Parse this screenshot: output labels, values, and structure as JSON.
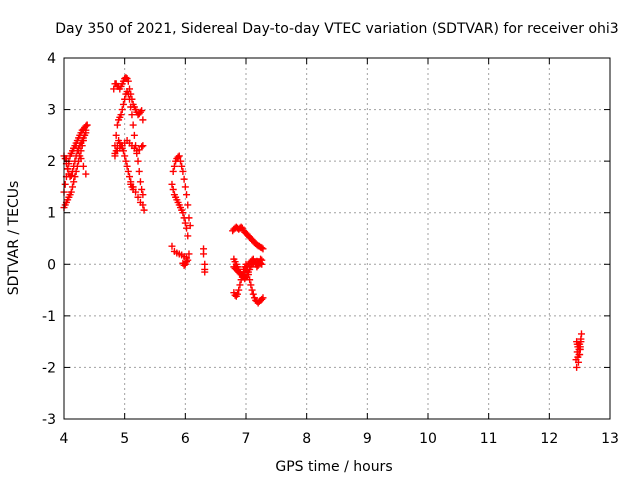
{
  "chart_data": {
    "type": "scatter",
    "title": "Day 350 of 2021, Sidereal Day-to-day VTEC variation (SDTVAR) for receiver ohi3",
    "xlabel": "GPS time / hours",
    "ylabel": "SDTVAR / TECUs",
    "xlim": [
      4,
      13
    ],
    "ylim": [
      -3,
      4
    ],
    "x_ticks": [
      4,
      5,
      6,
      7,
      8,
      9,
      10,
      11,
      12,
      13
    ],
    "x_tick_labels": [
      "4",
      "5",
      "6",
      "7",
      "8",
      "9",
      "10",
      "11",
      "12",
      "13"
    ],
    "y_ticks": [
      -3,
      -2,
      -1,
      0,
      1,
      2,
      3,
      4
    ],
    "y_tick_labels": [
      "-3",
      "-2",
      "-1",
      "0",
      "1",
      "2",
      "3",
      "4"
    ],
    "grid": true,
    "marker": "+",
    "color": "#ff0000",
    "series": [
      {
        "name": "SDTVAR",
        "x": [
          4.0,
          4.02,
          4.04,
          4.06,
          4.08,
          4.1,
          4.12,
          4.14,
          4.16,
          4.18,
          4.2,
          4.22,
          4.24,
          4.26,
          4.28,
          4.3,
          4.32,
          4.34,
          4.36,
          4.38,
          4.0,
          4.02,
          4.04,
          4.06,
          4.08,
          4.1,
          4.12,
          4.14,
          4.16,
          4.18,
          4.2,
          4.22,
          4.24,
          4.26,
          4.28,
          4.3,
          4.32,
          4.34,
          4.36,
          4.38,
          4.0,
          4.02,
          4.04,
          4.06,
          4.08,
          4.1,
          4.12,
          4.14,
          4.16,
          4.18,
          4.2,
          4.22,
          4.24,
          4.26,
          4.28,
          4.3,
          4.32,
          4.34,
          4.36,
          4.04,
          4.08,
          4.12,
          4.16,
          4.2,
          4.24,
          4.28,
          4.32,
          4.36,
          4.82,
          4.84,
          4.86,
          4.88,
          4.9,
          4.92,
          4.94,
          4.96,
          4.98,
          5.0,
          5.02,
          5.04,
          5.06,
          5.08,
          5.1,
          5.12,
          5.14,
          5.16,
          5.18,
          5.2,
          5.22,
          5.24,
          5.26,
          5.28,
          5.3,
          4.84,
          4.86,
          4.88,
          4.9,
          4.92,
          4.94,
          4.96,
          4.98,
          5.0,
          5.02,
          5.04,
          5.06,
          5.08,
          5.1,
          5.12,
          5.14,
          5.16,
          5.18,
          5.2,
          5.22,
          5.24,
          5.26,
          5.28,
          5.3,
          4.84,
          4.88,
          4.92,
          4.96,
          5.0,
          5.04,
          5.08,
          5.12,
          5.16,
          5.2,
          5.24,
          5.28,
          5.3,
          4.84,
          4.86,
          4.88,
          4.9,
          4.92,
          4.94,
          4.96,
          4.98,
          5.0,
          5.02,
          5.04,
          5.06,
          5.08,
          5.1,
          5.12,
          5.14,
          5.1,
          5.14,
          5.18,
          5.22,
          5.26,
          5.3,
          5.32,
          5.8,
          5.82,
          5.84,
          5.86,
          5.88,
          5.9,
          5.92,
          5.94,
          5.96,
          5.98,
          6.0,
          6.02,
          6.04,
          6.06,
          6.08,
          5.78,
          5.8,
          5.82,
          5.84,
          5.86,
          5.88,
          5.9,
          5.92,
          5.94,
          5.96,
          5.98,
          6.0,
          6.02,
          6.04,
          5.78,
          5.82,
          5.86,
          5.9,
          5.94,
          5.98,
          6.02,
          6.06,
          5.96,
          5.98,
          6.0,
          6.02,
          6.04,
          6.3,
          6.3,
          6.32,
          6.32,
          6.32,
          6.78,
          6.8,
          6.82,
          6.84,
          6.86,
          6.88,
          6.9,
          6.92,
          6.94,
          6.96,
          6.98,
          7.0,
          7.02,
          7.04,
          7.06,
          7.08,
          7.1,
          7.12,
          7.14,
          7.16,
          7.18,
          7.2,
          7.22,
          7.24,
          7.26,
          7.28,
          6.8,
          6.82,
          6.84,
          6.86,
          6.88,
          6.9,
          6.92,
          6.94,
          6.96,
          6.98,
          7.0,
          7.02,
          7.04,
          7.06,
          7.08,
          7.1,
          7.12,
          7.14,
          7.16,
          7.18,
          7.2,
          7.22,
          7.24,
          7.26,
          6.8,
          6.82,
          6.84,
          6.86,
          6.88,
          6.9,
          6.92,
          6.94,
          6.96,
          6.98,
          7.0,
          7.02,
          7.04,
          7.06,
          7.08,
          7.1,
          7.12,
          7.14,
          7.16,
          7.18,
          7.2,
          7.22,
          7.24,
          7.26,
          7.28,
          6.8,
          6.82,
          6.84,
          6.86,
          6.88,
          6.9,
          6.92,
          6.94,
          6.96,
          6.98,
          7.0,
          7.02,
          7.04,
          7.06,
          7.08,
          7.1,
          7.12,
          7.14,
          7.16,
          7.18,
          7.2,
          7.22,
          7.24,
          7.26,
          12.44,
          12.45,
          12.46,
          12.47,
          12.48,
          12.49,
          12.5,
          12.51,
          12.52,
          12.53,
          12.45,
          12.46,
          12.47,
          12.48,
          12.49,
          12.5,
          12.51,
          12.52
        ],
        "y": [
          1.1,
          1.15,
          1.2,
          1.25,
          1.3,
          1.35,
          1.4,
          1.5,
          1.6,
          1.7,
          1.8,
          1.9,
          2.0,
          2.1,
          2.2,
          2.3,
          2.4,
          2.5,
          2.6,
          2.7,
          1.4,
          1.55,
          1.7,
          1.85,
          2.0,
          2.1,
          2.15,
          2.2,
          2.25,
          2.3,
          2.35,
          2.4,
          2.45,
          2.5,
          2.55,
          2.6,
          2.62,
          2.65,
          2.68,
          2.7,
          2.1,
          2.05,
          1.95,
          1.85,
          1.75,
          1.7,
          1.72,
          1.8,
          1.9,
          2.0,
          2.1,
          2.2,
          2.25,
          2.3,
          2.35,
          2.4,
          2.45,
          2.5,
          2.55,
          2.05,
          1.95,
          2.15,
          2.25,
          2.3,
          2.2,
          2.05,
          1.9,
          1.75,
          3.4,
          3.5,
          3.5,
          3.45,
          3.45,
          3.4,
          3.45,
          3.5,
          3.55,
          3.6,
          3.62,
          3.6,
          3.55,
          3.4,
          3.3,
          3.2,
          3.1,
          3.05,
          3.0,
          2.95,
          2.9,
          2.92,
          2.95,
          2.98,
          2.8,
          2.3,
          2.5,
          2.7,
          2.8,
          2.85,
          2.9,
          3.0,
          3.1,
          3.2,
          3.3,
          3.35,
          3.3,
          3.2,
          3.05,
          2.9,
          2.7,
          2.5,
          2.3,
          2.15,
          2.0,
          1.8,
          1.6,
          1.45,
          1.35,
          2.15,
          2.2,
          2.25,
          2.3,
          2.35,
          2.4,
          2.35,
          2.3,
          2.25,
          2.2,
          2.22,
          2.28,
          2.3,
          2.1,
          2.2,
          2.3,
          2.4,
          2.35,
          2.3,
          2.25,
          2.2,
          2.1,
          2.0,
          1.9,
          1.8,
          1.7,
          1.6,
          1.5,
          1.45,
          1.55,
          1.5,
          1.4,
          1.3,
          1.2,
          1.15,
          1.05,
          1.8,
          1.9,
          2.0,
          2.05,
          2.08,
          2.1,
          2.0,
          1.9,
          1.8,
          1.65,
          1.5,
          1.35,
          1.15,
          0.9,
          0.75,
          1.55,
          1.45,
          1.35,
          1.3,
          1.25,
          1.2,
          1.15,
          1.1,
          1.05,
          1.0,
          0.9,
          0.8,
          0.7,
          0.55,
          0.35,
          0.25,
          0.22,
          0.2,
          0.18,
          0.15,
          0.12,
          0.2,
          0.02,
          -0.02,
          0.0,
          0.05,
          0.08,
          0.3,
          0.2,
          0.0,
          -0.1,
          -0.15,
          0.65,
          0.68,
          0.7,
          0.72,
          0.7,
          0.68,
          0.7,
          0.72,
          0.7,
          0.65,
          0.62,
          0.6,
          0.58,
          0.55,
          0.52,
          0.5,
          0.48,
          0.45,
          0.42,
          0.4,
          0.38,
          0.36,
          0.35,
          0.33,
          0.32,
          0.3,
          -0.05,
          -0.08,
          -0.1,
          -0.12,
          -0.15,
          -0.18,
          -0.2,
          -0.22,
          -0.25,
          -0.28,
          -0.25,
          -0.2,
          -0.15,
          -0.1,
          -0.05,
          0.0,
          0.02,
          0.05,
          0.05,
          0.06,
          0.05,
          0.04,
          0.02,
          0.0,
          -0.55,
          -0.6,
          -0.62,
          -0.58,
          -0.5,
          -0.4,
          -0.3,
          -0.2,
          -0.1,
          -0.05,
          0.0,
          -0.1,
          -0.2,
          -0.3,
          -0.4,
          -0.5,
          -0.58,
          -0.65,
          -0.7,
          -0.72,
          -0.75,
          -0.72,
          -0.7,
          -0.68,
          -0.65,
          0.1,
          0.05,
          0.0,
          -0.05,
          -0.1,
          -0.15,
          -0.2,
          -0.25,
          -0.2,
          -0.15,
          -0.1,
          -0.05,
          0.0,
          0.02,
          0.05,
          0.08,
          0.1,
          0.05,
          0.0,
          -0.05,
          -0.02,
          0.05,
          0.1,
          0.08,
          -1.85,
          -2.0,
          -1.7,
          -1.6,
          -1.55,
          -1.65,
          -1.75,
          -1.6,
          -1.45,
          -1.35,
          -1.5,
          -1.55,
          -1.8,
          -1.9,
          -1.75,
          -1.55,
          -1.65,
          -1.5
        ]
      }
    ]
  }
}
